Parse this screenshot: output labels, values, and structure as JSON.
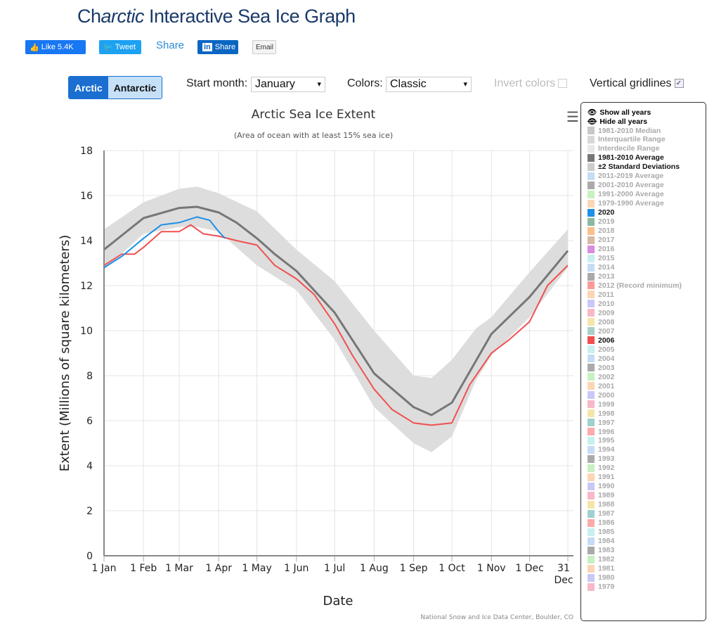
{
  "header": {
    "title_prefix": "Ch",
    "title_italic": "arctic",
    "title_rest": " Interactive Sea Ice Graph"
  },
  "social": {
    "like": "Like 5.4K",
    "tweet": "Tweet",
    "share": "Share",
    "linkedin_icon": "in",
    "linkedin": "Share",
    "email": "Email"
  },
  "controls": {
    "arctic": "Arctic",
    "antarctic": "Antarctic",
    "start_month_label": "Start month:",
    "start_month": "January",
    "colors_label": "Colors:",
    "colors": "Classic",
    "invert_label": "Invert colors",
    "invert_checked": false,
    "gridlines_label": "Vertical gridlines",
    "gridlines_checked": true,
    "checkmark": "✓"
  },
  "legend": {
    "show_all": "Show all years",
    "hide_all": "Hide all years",
    "items": [
      [
        "1981-2010 Median",
        "#c8c8c8",
        false
      ],
      [
        "Interquartile Range",
        "#d8d8d8",
        false
      ],
      [
        "Interdecile Range",
        "#e8e8e8",
        false
      ],
      [
        "1981-2010 Average",
        "#777777",
        true
      ],
      [
        "±2 Standard Deviations",
        "#cccccc",
        true
      ],
      [
        "2011-2019 Average",
        "#c6dcf5",
        false
      ],
      [
        "2001-2010 Average",
        "#aaaaaa",
        false
      ],
      [
        "1991-2000 Average",
        "#c8f0c0",
        false
      ],
      [
        "1979-1990 Average",
        "#fcd5b5",
        false
      ],
      [
        "2020",
        "#1e90e6",
        true
      ],
      [
        "2019",
        "#8fb8a0",
        false
      ],
      [
        "2018",
        "#fcc08a",
        false
      ],
      [
        "2017",
        "#d9b8a5",
        false
      ],
      [
        "2016",
        "#d98ce0",
        false
      ],
      [
        "2015",
        "#c8f0f0",
        false
      ],
      [
        "2014",
        "#c6dcf5",
        false
      ],
      [
        "2013",
        "#aaaaaa",
        false
      ],
      [
        "2012 (Record minimum)",
        "#fc9a9a",
        false
      ],
      [
        "2011",
        "#fcd5b5",
        false
      ],
      [
        "2010",
        "#c8c8f8",
        false
      ],
      [
        "2009",
        "#f8b8c8",
        false
      ],
      [
        "2008",
        "#f5e6a8",
        false
      ],
      [
        "2007",
        "#a8d0c8",
        false
      ],
      [
        "2006",
        "#f05050",
        true
      ],
      [
        "2005",
        "#c8f0f0",
        false
      ],
      [
        "2004",
        "#c6dcf5",
        false
      ],
      [
        "2003",
        "#aaaaaa",
        false
      ],
      [
        "2002",
        "#c8f0c0",
        false
      ],
      [
        "2001",
        "#fcd5b5",
        false
      ],
      [
        "2000",
        "#c8c8f8",
        false
      ],
      [
        "1999",
        "#f8b8c8",
        false
      ],
      [
        "1998",
        "#f5e6a8",
        false
      ],
      [
        "1997",
        "#a0d0d0",
        false
      ],
      [
        "1996",
        "#fcaaaa",
        false
      ],
      [
        "1995",
        "#c8f0f0",
        false
      ],
      [
        "1994",
        "#c6dcf5",
        false
      ],
      [
        "1993",
        "#aaaaaa",
        false
      ],
      [
        "1992",
        "#c8f0c0",
        false
      ],
      [
        "1991",
        "#fcd5b5",
        false
      ],
      [
        "1990",
        "#c8c8f8",
        false
      ],
      [
        "1989",
        "#f8b8c8",
        false
      ],
      [
        "1988",
        "#f5e6a8",
        false
      ],
      [
        "1987",
        "#a0d0d0",
        false
      ],
      [
        "1986",
        "#fcaaaa",
        false
      ],
      [
        "1985",
        "#c8f0f0",
        false
      ],
      [
        "1984",
        "#c6dcf5",
        false
      ],
      [
        "1983",
        "#aaaaaa",
        false
      ],
      [
        "1982",
        "#c8f0c0",
        false
      ],
      [
        "1981",
        "#fcd5b5",
        false
      ],
      [
        "1980",
        "#c8c8f8",
        false
      ],
      [
        "1979",
        "#f8b8c8",
        false
      ]
    ]
  },
  "chart_data": {
    "type": "line",
    "title": "Arctic Sea Ice Extent",
    "subtitle": "(Area of ocean with at least 15% sea ice)",
    "xlabel": "Date",
    "ylabel": "Extent (Millions of square kilometers)",
    "ylim": [
      0,
      18
    ],
    "yticks": [
      0,
      2,
      4,
      6,
      8,
      10,
      12,
      14,
      16,
      18
    ],
    "xticks": [
      "1 Jan",
      "1 Feb",
      "1 Mar",
      "1 Apr",
      "1 May",
      "1 Jun",
      "1 Jul",
      "1 Aug",
      "1 Sep",
      "1 Oct",
      "1 Nov",
      "1 Dec",
      "31 Dec"
    ],
    "grid": true,
    "credit": "National Snow and Ice Data Center, Boulder, CO",
    "band": {
      "name": "±2 Standard Deviations",
      "color": "#dddddd",
      "x": [
        "1 Jan",
        "1 Feb",
        "1 Mar",
        "15 Mar",
        "1 Apr",
        "1 May",
        "1 Jun",
        "1 Jul",
        "1 Aug",
        "1 Sep",
        "15 Sep",
        "1 Oct",
        "20 Oct",
        "1 Nov",
        "1 Dec",
        "31 Dec"
      ],
      "upper": [
        14.5,
        15.7,
        16.3,
        16.4,
        16.1,
        15.3,
        13.6,
        12.2,
        10.0,
        8.0,
        7.9,
        8.7,
        10.1,
        10.6,
        12.6,
        14.5
      ],
      "lower": [
        12.7,
        14.3,
        14.6,
        14.6,
        14.4,
        12.9,
        11.8,
        9.6,
        6.6,
        5.0,
        4.6,
        5.3,
        7.8,
        8.9,
        10.6,
        12.8
      ]
    },
    "series": [
      {
        "name": "1981-2010 Average",
        "color": "#777777",
        "x": [
          "1 Jan",
          "1 Feb",
          "1 Mar",
          "15 Mar",
          "1 Apr",
          "15 Apr",
          "1 May",
          "15 May",
          "1 Jun",
          "1 Jul",
          "1 Aug",
          "1 Sep",
          "15 Sep",
          "1 Oct",
          "1 Nov",
          "1 Dec",
          "31 Dec"
        ],
        "y": [
          13.6,
          15.0,
          15.45,
          15.5,
          15.25,
          14.8,
          14.1,
          13.4,
          12.65,
          10.8,
          8.1,
          6.6,
          6.25,
          6.8,
          9.85,
          11.5,
          13.55
        ]
      },
      {
        "name": "2006",
        "color": "#f05050",
        "x": [
          "1 Jan",
          "15 Jan",
          "25 Jan",
          "1 Feb",
          "15 Feb",
          "1 Mar",
          "10 Mar",
          "20 Mar",
          "1 Apr",
          "15 Apr",
          "1 May",
          "15 May",
          "1 Jun",
          "15 Jun",
          "1 Jul",
          "15 Jul",
          "1 Aug",
          "15 Aug",
          "1 Sep",
          "15 Sep",
          "1 Oct",
          "15 Oct",
          "1 Nov",
          "15 Nov",
          "1 Dec",
          "15 Dec",
          "31 Dec"
        ],
        "y": [
          12.9,
          13.4,
          13.4,
          13.7,
          14.4,
          14.4,
          14.7,
          14.3,
          14.2,
          14.0,
          13.8,
          12.9,
          12.3,
          11.6,
          10.3,
          8.9,
          7.4,
          6.5,
          5.9,
          5.8,
          5.9,
          7.6,
          9.0,
          9.6,
          10.4,
          12.0,
          12.9
        ]
      },
      {
        "name": "2020",
        "color": "#1e90e6",
        "x": [
          "1 Jan",
          "15 Jan",
          "1 Feb",
          "15 Feb",
          "1 Mar",
          "15 Mar",
          "25 Mar",
          "1 Apr",
          "6 Apr"
        ],
        "y": [
          12.8,
          13.3,
          14.1,
          14.7,
          14.8,
          15.05,
          14.9,
          14.4,
          14.1
        ]
      }
    ]
  }
}
